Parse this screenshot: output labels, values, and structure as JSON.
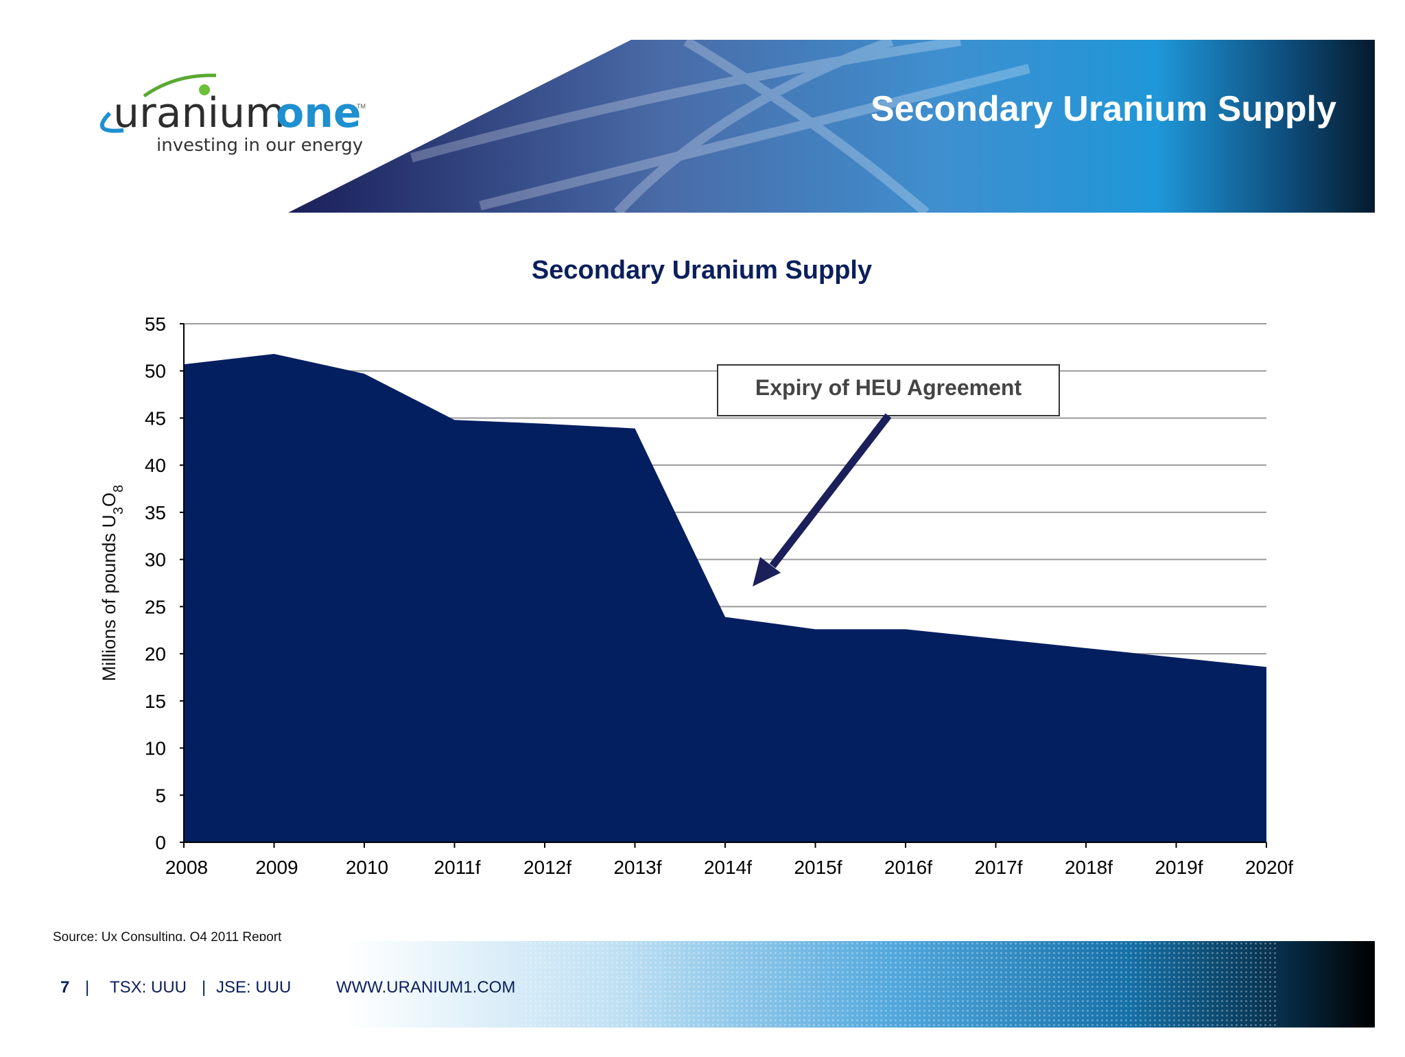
{
  "logo": {
    "word_left": "uranium",
    "word_right": "one",
    "trademark": "TM",
    "tagline": "investing in our energy"
  },
  "header": {
    "title": "Secondary Uranium Supply"
  },
  "chart_data": {
    "type": "area",
    "title": "Secondary Uranium Supply",
    "xlabel": "",
    "ylabel": "Millions of pounds U3O8",
    "ylabel_parts": {
      "main": "Millions of pounds U",
      "sub1": "3",
      "mid": "O",
      "sub2": "8"
    },
    "categories": [
      "2008",
      "2009",
      "2010",
      "2011f",
      "2012f",
      "2013f",
      "2014f",
      "2015f",
      "2016f",
      "2017f",
      "2018f",
      "2019f",
      "2020f"
    ],
    "values": [
      50.7,
      51.8,
      49.7,
      44.8,
      44.4,
      43.9,
      23.9,
      22.6,
      22.6,
      21.6,
      20.6,
      19.6,
      18.6
    ],
    "ylim": [
      0,
      55
    ],
    "yticks": [
      0,
      5,
      10,
      15,
      20,
      25,
      30,
      35,
      40,
      45,
      50,
      55
    ],
    "grid": true,
    "fill_color": "#041f60",
    "annotation": {
      "text": "Expiry of HEU Agreement"
    }
  },
  "footer": {
    "source": "Source:  Ux Consulting, Q4 2011 Report",
    "page_number": "7",
    "separator": "|",
    "tsx": "TSX: UUU",
    "jse": "JSE:  UUU",
    "website": "WWW.URANIUM1.COM"
  },
  "colors": {
    "navy": "#0b1f5c",
    "accent_blue": "#1e8fd0",
    "green": "#5aa832"
  }
}
